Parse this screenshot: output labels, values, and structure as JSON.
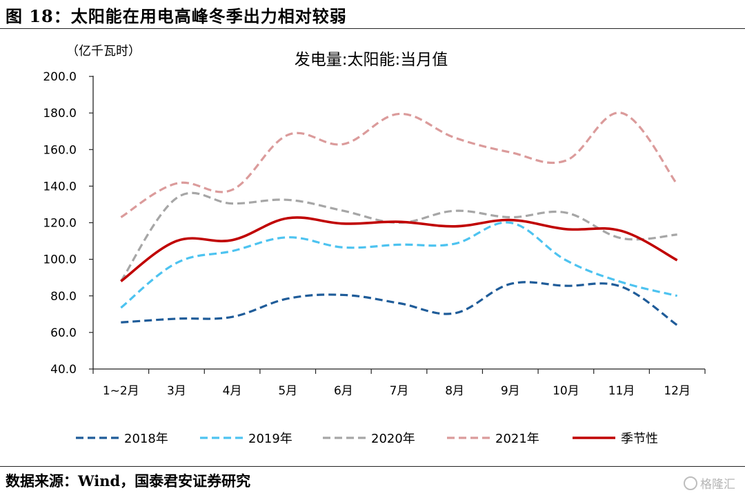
{
  "figure_title": "图 18：太阳能在用电高峰冬季出力相对较弱",
  "source_note": "数据来源：Wind，国泰君安证券研究",
  "watermark": "格隆汇",
  "chart_data": {
    "type": "line",
    "title": "发电量:太阳能:当月值",
    "unit_label": "（亿千瓦时）",
    "categories": [
      "1~2月",
      "3月",
      "4月",
      "5月",
      "6月",
      "7月",
      "8月",
      "9月",
      "10月",
      "11月",
      "12月"
    ],
    "ylim": [
      40,
      200
    ],
    "yticks": [
      "200.0",
      "180.0",
      "160.0",
      "140.0",
      "120.0",
      "100.0",
      "80.0",
      "60.0",
      "40.0"
    ],
    "grid": false,
    "legend_position": "bottom",
    "series": [
      {
        "name": "2018年",
        "color": "#1F5C99",
        "style": "dashed",
        "values": [
          65.5,
          67.5,
          68.5,
          78.5,
          80.5,
          76.0,
          70.5,
          86.5,
          85.5,
          85.0,
          64.0
        ]
      },
      {
        "name": "2019年",
        "color": "#4DC3F0",
        "style": "dashed",
        "values": [
          73.5,
          98.0,
          104.5,
          112.0,
          106.5,
          108.0,
          108.5,
          120.0,
          99.5,
          87.5,
          80.0
        ]
      },
      {
        "name": "2020年",
        "color": "#A6A6A6",
        "style": "dashed",
        "values": [
          88.0,
          133.5,
          130.5,
          132.5,
          126.5,
          120.0,
          126.5,
          123.0,
          125.5,
          111.5,
          113.5
        ]
      },
      {
        "name": "2021年",
        "color": "#DB9B9B",
        "style": "dashed",
        "values": [
          123.0,
          141.5,
          138.0,
          168.0,
          163.0,
          179.5,
          166.5,
          158.5,
          154.0,
          180.0,
          141.0
        ]
      },
      {
        "name": "季节性",
        "color": "#C00000",
        "style": "solid",
        "values": [
          88.0,
          110.0,
          110.5,
          122.5,
          119.5,
          120.5,
          118.0,
          121.5,
          116.5,
          115.5,
          99.5
        ]
      }
    ]
  }
}
